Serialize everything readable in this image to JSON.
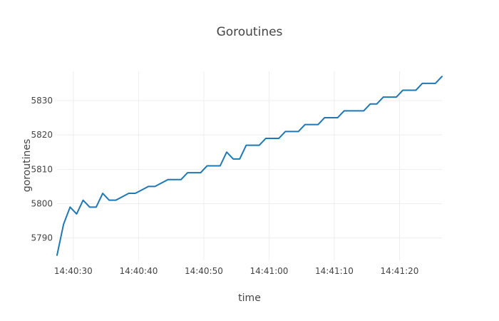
{
  "chart_data": {
    "type": "line",
    "title": "Goroutines",
    "xlabel": "time",
    "ylabel": "goroutines",
    "x_ticks": [
      "14:40:30",
      "14:40:40",
      "14:40:50",
      "14:41:00",
      "14:41:10",
      "14:41:20"
    ],
    "y_ticks": [
      5790,
      5800,
      5810,
      5820,
      5830
    ],
    "xlim": [
      "14:40:27.5",
      "14:41:26.5"
    ],
    "ylim": [
      5783.5,
      5838.5
    ],
    "grid": true,
    "legend": "none",
    "colors": {
      "line": "#1f77b4",
      "grid": "#eeeeee",
      "text": "#444444"
    },
    "series": [
      {
        "x": [
          "14:40:27.5",
          "14:40:28.5",
          "14:40:29.5",
          "14:40:30.5",
          "14:40:31.5",
          "14:40:32.5",
          "14:40:33.5",
          "14:40:34.5",
          "14:40:35.5",
          "14:40:36.5",
          "14:40:37.5",
          "14:40:38.5",
          "14:40:39.5",
          "14:40:40.5",
          "14:40:41.5",
          "14:40:42.5",
          "14:40:43.5",
          "14:40:44.5",
          "14:40:45.5",
          "14:40:46.5",
          "14:40:47.5",
          "14:40:48.5",
          "14:40:49.5",
          "14:40:50.5",
          "14:40:51.5",
          "14:40:52.5",
          "14:40:53.5",
          "14:40:54.5",
          "14:40:55.5",
          "14:40:56.5",
          "14:40:57.5",
          "14:40:58.5",
          "14:40:59.5",
          "14:41:00.5",
          "14:41:01.5",
          "14:41:02.5",
          "14:41:03.5",
          "14:41:04.5",
          "14:41:05.5",
          "14:41:06.5",
          "14:41:07.5",
          "14:41:08.5",
          "14:41:09.5",
          "14:41:10.5",
          "14:41:11.5",
          "14:41:12.5",
          "14:41:13.5",
          "14:41:14.5",
          "14:41:15.5",
          "14:41:16.5",
          "14:41:17.5",
          "14:41:18.5",
          "14:41:19.5",
          "14:41:20.5",
          "14:41:21.5",
          "14:41:22.5",
          "14:41:23.5",
          "14:41:24.5",
          "14:41:25.5",
          "14:41:26.5"
        ],
        "values": [
          5785,
          5794,
          5799,
          5797,
          5801,
          5799,
          5799,
          5803,
          5801,
          5801,
          5802,
          5803,
          5803,
          5804,
          5805,
          5805,
          5806,
          5807,
          5807,
          5807,
          5809,
          5809,
          5809,
          5811,
          5811,
          5811,
          5815,
          5813,
          5813,
          5817,
          5817,
          5817,
          5819,
          5819,
          5819,
          5821,
          5821,
          5821,
          5823,
          5823,
          5823,
          5825,
          5825,
          5825,
          5827,
          5827,
          5827,
          5827,
          5829,
          5829,
          5831,
          5831,
          5831,
          5833,
          5833,
          5833,
          5835,
          5835,
          5835,
          5837
        ]
      }
    ]
  }
}
